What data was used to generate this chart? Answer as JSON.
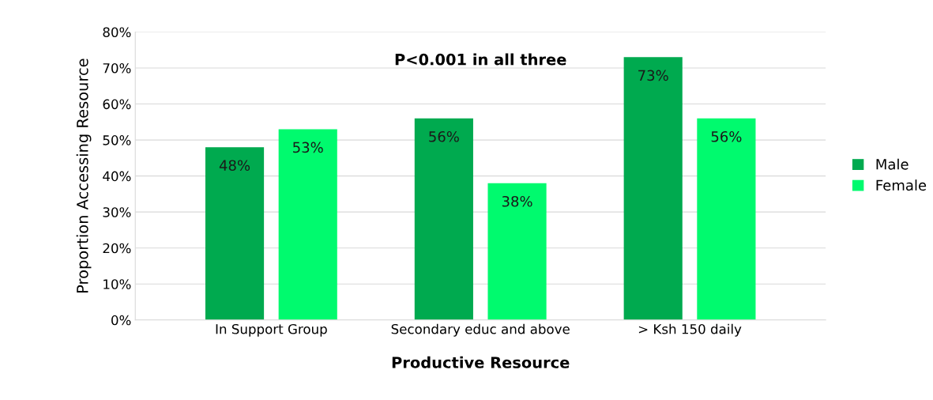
{
  "chart_data": {
    "type": "bar",
    "xlabel": "Productive Resource",
    "ylabel": "Proportion Accessing Resource",
    "categories": [
      "In Support Group",
      "Secondary educ and above",
      "> Ksh 150 daily"
    ],
    "series": [
      {
        "name": "Male",
        "color": "#00aa4f",
        "values": [
          48,
          56,
          73
        ],
        "value_labels": [
          "48%",
          "56%",
          "73%"
        ]
      },
      {
        "name": "Female",
        "color": "#00fa6e",
        "values": [
          53,
          38,
          56
        ],
        "value_labels": [
          "53%",
          "38%",
          "56%"
        ]
      }
    ],
    "ylim": [
      0,
      80
    ],
    "yticks": [
      {
        "value": 0,
        "label": "0%"
      },
      {
        "value": 10,
        "label": "10%"
      },
      {
        "value": 20,
        "label": "20%"
      },
      {
        "value": 30,
        "label": "30%"
      },
      {
        "value": 40,
        "label": "40%"
      },
      {
        "value": 50,
        "label": "50%"
      },
      {
        "value": 60,
        "label": "60%"
      },
      {
        "value": 70,
        "label": "70%"
      },
      {
        "value": 80,
        "label": "80%"
      }
    ],
    "grid": "y",
    "legend": "right",
    "annotations": [
      "P<0.001 in all three"
    ]
  }
}
